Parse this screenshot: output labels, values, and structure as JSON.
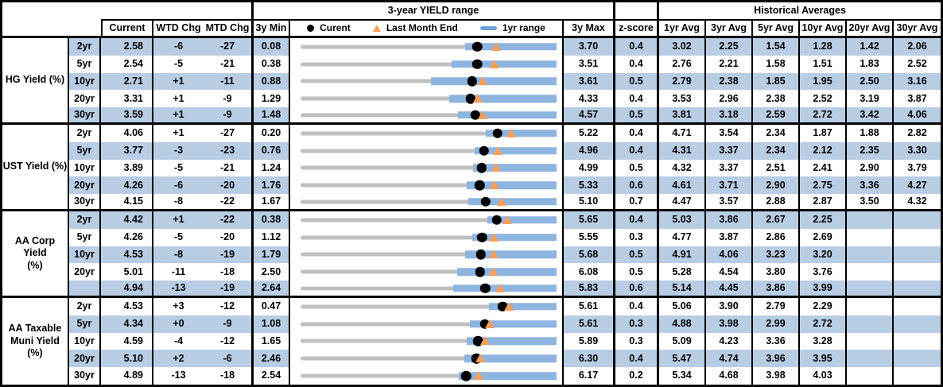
{
  "header": {
    "top": {
      "yield_range_title": "3-year YIELD range",
      "historical_title": "Historical Averages"
    },
    "cols": {
      "current": "Current",
      "wtd": "WTD Chg",
      "mtd": "MTD Chg",
      "min3y": "3y Min",
      "max3y": "3y Max",
      "zscore": "z-score",
      "avgs": [
        "1yr Avg",
        "3yr Avg",
        "5yr Avg",
        "10yr Avg",
        "20yr Avg",
        "30yr Avg"
      ]
    },
    "legend": {
      "current_label": "Curent",
      "last_month_label": "Last Month End",
      "range_label": "1yr range"
    }
  },
  "colors": {
    "stripe_blue": "#B8CCE4",
    "range_bar_blue": "#8EB4E0",
    "legend_dash_blue": "#6FA1D9",
    "track_gray": "#C0C0C0",
    "marker_orange": "#F7A05A",
    "marker_black": "#000000",
    "border_black": "#000000"
  },
  "chart_data": {
    "type": "range-dot-table",
    "description": "Each row: gray track spans 3y Min..3y Max; blue bar = 1yr range; black dot = current yield; orange triangle = last month end. Numeric values in percent.",
    "legend_position": "top of chart column",
    "groups": [
      {
        "name": "HG Yield (%)",
        "rows": [
          {
            "tenor": "2yr",
            "current": "2.58",
            "wtd": "-6",
            "mtd": "-27",
            "min": "0.08",
            "max": "3.70",
            "z": "0.4",
            "avgs": [
              "3.02",
              "2.25",
              "1.54",
              "1.28",
              "1.42",
              "2.06"
            ],
            "chart": {
              "min": 0.08,
              "max": 3.7,
              "current": 2.58,
              "last_month_end": 2.85,
              "yr1_low": 2.41,
              "yr1_high": 3.7
            }
          },
          {
            "tenor": "5yr",
            "current": "2.54",
            "wtd": "-5",
            "mtd": "-21",
            "min": "0.38",
            "max": "3.51",
            "z": "0.4",
            "avgs": [
              "2.76",
              "2.21",
              "1.58",
              "1.51",
              "1.83",
              "2.52"
            ],
            "chart": {
              "min": 0.38,
              "max": 3.51,
              "current": 2.54,
              "last_month_end": 2.75,
              "yr1_low": 2.23,
              "yr1_high": 3.51
            }
          },
          {
            "tenor": "10yr",
            "current": "2.71",
            "wtd": "+1",
            "mtd": "-11",
            "min": "0.88",
            "max": "3.61",
            "z": "0.5",
            "avgs": [
              "2.79",
              "2.38",
              "1.85",
              "1.95",
              "2.50",
              "3.16"
            ],
            "chart": {
              "min": 0.88,
              "max": 3.61,
              "current": 2.71,
              "last_month_end": 2.82,
              "yr1_low": 2.27,
              "yr1_high": 3.61
            }
          },
          {
            "tenor": "20yr",
            "current": "3.31",
            "wtd": "+1",
            "mtd": "-9",
            "min": "1.29",
            "max": "4.33",
            "z": "0.4",
            "avgs": [
              "3.53",
              "2.96",
              "2.38",
              "2.52",
              "3.19",
              "3.87"
            ],
            "chart": {
              "min": 1.29,
              "max": 4.33,
              "current": 3.31,
              "last_month_end": 3.4,
              "yr1_low": 3.06,
              "yr1_high": 4.33
            }
          },
          {
            "tenor": "30yr",
            "current": "3.59",
            "wtd": "+1",
            "mtd": "-9",
            "min": "1.48",
            "max": "4.57",
            "z": "0.5",
            "avgs": [
              "3.81",
              "3.18",
              "2.59",
              "2.72",
              "3.42",
              "4.06"
            ],
            "chart": {
              "min": 1.48,
              "max": 4.57,
              "current": 3.59,
              "last_month_end": 3.68,
              "yr1_low": 3.38,
              "yr1_high": 4.57
            }
          }
        ]
      },
      {
        "name": "UST Yield (%)",
        "rows": [
          {
            "tenor": "2yr",
            "current": "4.06",
            "wtd": "+1",
            "mtd": "-27",
            "min": "0.20",
            "max": "5.22",
            "z": "0.4",
            "avgs": [
              "4.71",
              "3.54",
              "2.34",
              "1.87",
              "1.88",
              "2.82"
            ],
            "chart": {
              "min": 0.2,
              "max": 5.22,
              "current": 4.06,
              "last_month_end": 4.33,
              "yr1_low": 3.84,
              "yr1_high": 5.22
            }
          },
          {
            "tenor": "5yr",
            "current": "3.77",
            "wtd": "-3",
            "mtd": "-23",
            "min": "0.76",
            "max": "4.96",
            "z": "0.4",
            "avgs": [
              "4.31",
              "3.37",
              "2.34",
              "2.12",
              "2.35",
              "3.30"
            ],
            "chart": {
              "min": 0.76,
              "max": 4.96,
              "current": 3.77,
              "last_month_end": 4.0,
              "yr1_low": 3.62,
              "yr1_high": 4.96
            }
          },
          {
            "tenor": "10yr",
            "current": "3.89",
            "wtd": "-5",
            "mtd": "-21",
            "min": "1.24",
            "max": "4.99",
            "z": "0.5",
            "avgs": [
              "4.32",
              "3.37",
              "2.51",
              "2.41",
              "2.90",
              "3.79"
            ],
            "chart": {
              "min": 1.24,
              "max": 4.99,
              "current": 3.89,
              "last_month_end": 4.1,
              "yr1_low": 3.77,
              "yr1_high": 4.99
            }
          },
          {
            "tenor": "20yr",
            "current": "4.26",
            "wtd": "-6",
            "mtd": "-20",
            "min": "1.76",
            "max": "5.33",
            "z": "0.6",
            "avgs": [
              "4.61",
              "3.71",
              "2.90",
              "2.75",
              "3.36",
              "4.27"
            ],
            "chart": {
              "min": 1.76,
              "max": 5.33,
              "current": 4.26,
              "last_month_end": 4.46,
              "yr1_low": 4.08,
              "yr1_high": 5.33
            }
          },
          {
            "tenor": "30yr",
            "current": "4.15",
            "wtd": "-8",
            "mtd": "-22",
            "min": "1.67",
            "max": "5.10",
            "z": "0.7",
            "avgs": [
              "4.47",
              "3.57",
              "2.88",
              "2.87",
              "3.50",
              "4.32"
            ],
            "chart": {
              "min": 1.67,
              "max": 5.1,
              "current": 4.15,
              "last_month_end": 4.37,
              "yr1_low": 3.92,
              "yr1_high": 5.1
            }
          }
        ]
      },
      {
        "name": "AA Corp Yield\n(%)",
        "rows": [
          {
            "tenor": "2yr",
            "current": "4.42",
            "wtd": "+1",
            "mtd": "-22",
            "min": "0.38",
            "max": "5.65",
            "z": "0.4",
            "avgs": [
              "5.03",
              "3.86",
              "2.67",
              "2.25",
              "",
              ""
            ],
            "chart": {
              "min": 0.38,
              "max": 5.65,
              "current": 4.42,
              "last_month_end": 4.64,
              "yr1_low": 4.22,
              "yr1_high": 5.65
            }
          },
          {
            "tenor": "5yr",
            "current": "4.26",
            "wtd": "-5",
            "mtd": "-20",
            "min": "1.12",
            "max": "5.55",
            "z": "0.3",
            "avgs": [
              "4.77",
              "3.87",
              "2.86",
              "2.69",
              "",
              ""
            ],
            "chart": {
              "min": 1.12,
              "max": 5.55,
              "current": 4.26,
              "last_month_end": 4.46,
              "yr1_low": 4.09,
              "yr1_high": 5.55
            }
          },
          {
            "tenor": "10yr",
            "current": "4.53",
            "wtd": "-8",
            "mtd": "-19",
            "min": "1.79",
            "max": "5.68",
            "z": "0.5",
            "avgs": [
              "4.91",
              "4.06",
              "3.23",
              "3.20",
              "",
              ""
            ],
            "chart": {
              "min": 1.79,
              "max": 5.68,
              "current": 4.53,
              "last_month_end": 4.72,
              "yr1_low": 4.29,
              "yr1_high": 5.68
            }
          },
          {
            "tenor": "20yr",
            "current": "5.01",
            "wtd": "-11",
            "mtd": "-18",
            "min": "2.50",
            "max": "6.08",
            "z": "0.5",
            "avgs": [
              "5.28",
              "4.54",
              "3.80",
              "3.76",
              "",
              ""
            ],
            "chart": {
              "min": 2.5,
              "max": 6.08,
              "current": 5.01,
              "last_month_end": 5.19,
              "yr1_low": 4.69,
              "yr1_high": 6.08
            }
          },
          {
            "tenor": "",
            "current": "4.94",
            "wtd": "-13",
            "mtd": "-19",
            "min": "2.64",
            "max": "5.83",
            "z": "0.6",
            "avgs": [
              "5.14",
              "4.45",
              "3.86",
              "3.99",
              "",
              ""
            ],
            "chart": {
              "min": 2.64,
              "max": 5.83,
              "current": 4.94,
              "last_month_end": 5.13,
              "yr1_low": 4.54,
              "yr1_high": 5.83
            }
          }
        ]
      },
      {
        "name": "AA Taxable\nMuni Yield\n(%)",
        "rows": [
          {
            "tenor": "2yr",
            "current": "4.53",
            "wtd": "+3",
            "mtd": "-12",
            "min": "0.47",
            "max": "5.61",
            "z": "0.4",
            "avgs": [
              "5.06",
              "3.90",
              "2.79",
              "2.29",
              "",
              ""
            ],
            "chart": {
              "min": 0.47,
              "max": 5.61,
              "current": 4.53,
              "last_month_end": 4.65,
              "yr1_low": 4.25,
              "yr1_high": 5.61
            }
          },
          {
            "tenor": "5yr",
            "current": "4.34",
            "wtd": "+0",
            "mtd": "-9",
            "min": "1.08",
            "max": "5.61",
            "z": "0.3",
            "avgs": [
              "4.88",
              "3.98",
              "2.99",
              "2.72",
              "",
              ""
            ],
            "chart": {
              "min": 1.08,
              "max": 5.61,
              "current": 4.34,
              "last_month_end": 4.43,
              "yr1_low": 4.08,
              "yr1_high": 5.61
            }
          },
          {
            "tenor": "10yr",
            "current": "4.59",
            "wtd": "-4",
            "mtd": "-12",
            "min": "1.65",
            "max": "5.89",
            "z": "0.3",
            "avgs": [
              "5.09",
              "4.23",
              "3.36",
              "3.28",
              "",
              ""
            ],
            "chart": {
              "min": 1.65,
              "max": 5.89,
              "current": 4.59,
              "last_month_end": 4.71,
              "yr1_low": 4.4,
              "yr1_high": 5.89
            }
          },
          {
            "tenor": "20yr",
            "current": "5.10",
            "wtd": "+2",
            "mtd": "-6",
            "min": "2.46",
            "max": "6.30",
            "z": "0.4",
            "avgs": [
              "5.47",
              "4.74",
              "3.96",
              "3.95",
              "",
              ""
            ],
            "chart": {
              "min": 2.46,
              "max": 6.3,
              "current": 5.1,
              "last_month_end": 5.16,
              "yr1_low": 4.92,
              "yr1_high": 6.3
            }
          },
          {
            "tenor": "30yr",
            "current": "4.89",
            "wtd": "-13",
            "mtd": "-18",
            "min": "2.54",
            "max": "6.17",
            "z": "0.2",
            "avgs": [
              "5.34",
              "4.68",
              "3.98",
              "4.03",
              "",
              ""
            ],
            "chart": {
              "min": 2.54,
              "max": 6.17,
              "current": 4.89,
              "last_month_end": 5.07,
              "yr1_low": 4.78,
              "yr1_high": 6.17
            }
          }
        ]
      }
    ]
  }
}
